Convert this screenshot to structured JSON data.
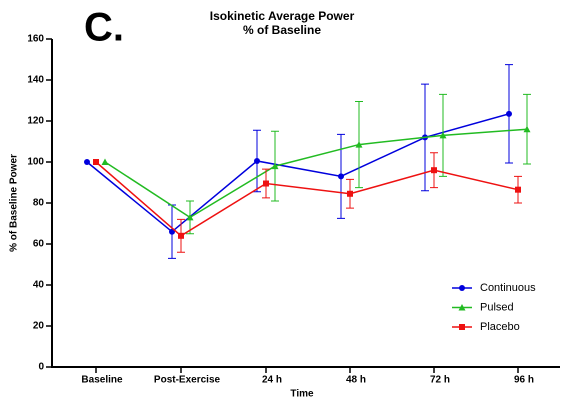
{
  "chart_data": {
    "type": "line",
    "panel": "C.",
    "title": [
      "Isokinetic Average Power",
      "% of Baseline"
    ],
    "x_label": "Time",
    "y_label": "% of Baseline Power",
    "categories": [
      "Baseline",
      "Post-Exercise",
      "24 h",
      "48 h",
      "72 h",
      "96 h"
    ],
    "ylim": [
      0,
      160
    ],
    "yticks": [
      0,
      20,
      40,
      60,
      80,
      100,
      120,
      140,
      160
    ],
    "legend": "lower right",
    "series": [
      {
        "name": "Continuous",
        "color": "#0000dd",
        "marker": "circle",
        "values": [
          100,
          66,
          100.5,
          93,
          112,
          123.5
        ],
        "errors": [
          null,
          13,
          15,
          20.5,
          26,
          24
        ]
      },
      {
        "name": "Pulsed",
        "color": "#22bb22",
        "marker": "triangle",
        "values": [
          100,
          73,
          98,
          108.5,
          113,
          116
        ],
        "errors": [
          null,
          8,
          17,
          21,
          20,
          17
        ]
      },
      {
        "name": "Placebo",
        "color": "#ee1111",
        "marker": "square",
        "values": [
          100,
          64,
          89.5,
          84.5,
          96,
          86.5
        ],
        "errors": [
          null,
          8,
          7,
          7,
          8.5,
          6.5
        ]
      }
    ]
  }
}
